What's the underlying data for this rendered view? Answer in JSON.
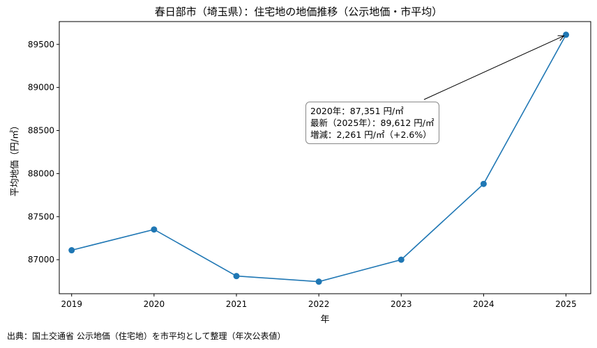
{
  "chart_data": {
    "type": "line",
    "title": "春日部市（埼玉県）：住宅地の地価推移（公示地価・市平均）",
    "xlabel": "年",
    "ylabel": "平均地価（円/㎡）",
    "x": [
      2019,
      2020,
      2021,
      2022,
      2023,
      2024,
      2025
    ],
    "series": [
      {
        "values": [
          87110,
          87351,
          86810,
          86745,
          87000,
          87880,
          89612
        ]
      }
    ],
    "xlim": [
      2018.85,
      2025.3
    ],
    "ylim": [
      86605,
      89765
    ],
    "yticks": [
      87000,
      87500,
      88000,
      88500,
      89000,
      89500
    ],
    "xticks": [
      2019,
      2020,
      2021,
      2022,
      2023,
      2024,
      2025
    ],
    "color": "#1f77b4",
    "grid": false,
    "annotation": {
      "lines": [
        "2020年：87,351 円/㎡",
        "最新（2025年）：89,612 円/㎡",
        "増減：2,261 円/㎡（+2.6%）"
      ],
      "arrow_target_x": 2025,
      "arrow_target_y": 89612
    }
  },
  "source_note": "出典：国土交通省 公示地価（住宅地）を市平均として整理（年次公表値）"
}
